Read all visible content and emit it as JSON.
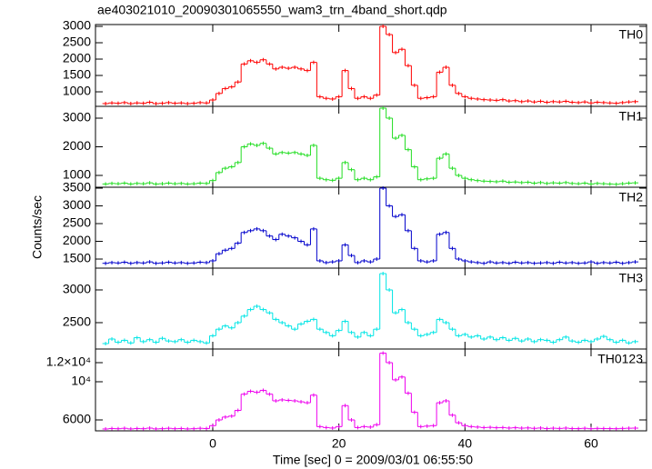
{
  "figure": {
    "title": "ae403021010_20090301065550_wam3_trn_4band_short.qdp",
    "xlabel": "Time [sec] 0 = 2009/03/01 06:55:50",
    "ylabel": "Counts/sec",
    "xlim": [
      -18.6,
      68.8
    ],
    "xticks": [
      0,
      20,
      40,
      60
    ],
    "x": [
      -17,
      -16,
      -15,
      -14,
      -13,
      -12,
      -11,
      -10,
      -9,
      -8,
      -7,
      -6,
      -5,
      -4,
      -3,
      -2,
      -1,
      0,
      1,
      2,
      3,
      4,
      5,
      6,
      7,
      8,
      9,
      10,
      11,
      12,
      13,
      14,
      15,
      16,
      17,
      18,
      19,
      20,
      21,
      22,
      23,
      24,
      25,
      26,
      27,
      28,
      29,
      30,
      31,
      32,
      33,
      34,
      35,
      36,
      37,
      38,
      39,
      40,
      41,
      42,
      43,
      44,
      45,
      46,
      47,
      48,
      49,
      50,
      51,
      52,
      53,
      54,
      55,
      56,
      57,
      58,
      59,
      60,
      61,
      62,
      63,
      64,
      65,
      66,
      67
    ]
  },
  "chart_data": [
    {
      "type": "step",
      "ylim": [
        556,
        3056
      ],
      "yticks": [
        1000,
        1500,
        2000,
        2500,
        3000
      ],
      "series": [
        {
          "name": "TH0",
          "color": "#ff0000",
          "values": [
            640,
            660,
            650,
            670,
            640,
            660,
            650,
            680,
            640,
            650,
            670,
            650,
            660,
            640,
            650,
            670,
            660,
            750,
            950,
            1100,
            1150,
            1300,
            1850,
            1950,
            1900,
            1980,
            1850,
            1700,
            1750,
            1720,
            1750,
            1700,
            1650,
            1900,
            850,
            800,
            780,
            850,
            1650,
            1100,
            800,
            850,
            800,
            900,
            3000,
            2750,
            2200,
            2300,
            1800,
            1200,
            800,
            820,
            850,
            1600,
            1750,
            1200,
            950,
            850,
            800,
            780,
            760,
            750,
            740,
            760,
            720,
            730,
            700,
            720,
            690,
            710,
            680,
            700,
            690,
            710,
            680,
            670,
            690,
            660,
            680,
            670,
            660,
            650,
            670,
            690,
            700
          ]
        }
      ]
    },
    {
      "type": "step",
      "ylim": [
        587,
        3413
      ],
      "yticks": [
        1000,
        2000,
        3000
      ],
      "series": [
        {
          "name": "TH1",
          "color": "#22dd22",
          "values": [
            700,
            720,
            710,
            730,
            700,
            720,
            710,
            740,
            700,
            710,
            730,
            710,
            720,
            700,
            710,
            730,
            720,
            820,
            1100,
            1250,
            1300,
            1450,
            2000,
            2100,
            2050,
            2120,
            1950,
            1750,
            1800,
            1780,
            1800,
            1750,
            1700,
            2050,
            900,
            850,
            830,
            900,
            1450,
            1200,
            850,
            900,
            850,
            950,
            3350,
            3000,
            2300,
            2400,
            1900,
            1300,
            850,
            880,
            900,
            1600,
            1750,
            1250,
            1000,
            900,
            850,
            820,
            800,
            790,
            780,
            800,
            760,
            770,
            750,
            760,
            730,
            750,
            720,
            740,
            730,
            750,
            720,
            710,
            730,
            700,
            720,
            710,
            700,
            690,
            710,
            730,
            740
          ]
        }
      ]
    },
    {
      "type": "step",
      "ylim": [
        1244,
        3526
      ],
      "yticks": [
        1500,
        2000,
        2500,
        3000,
        3500
      ],
      "series": [
        {
          "name": "TH2",
          "color": "#0000cc",
          "values": [
            1380,
            1400,
            1390,
            1410,
            1380,
            1400,
            1390,
            1420,
            1380,
            1390,
            1410,
            1390,
            1400,
            1380,
            1390,
            1410,
            1400,
            1450,
            1650,
            1750,
            1800,
            1950,
            2250,
            2300,
            2350,
            2300,
            2150,
            2050,
            2200,
            2150,
            2100,
            2000,
            1900,
            2350,
            1450,
            1400,
            1420,
            1450,
            1900,
            1600,
            1400,
            1450,
            1420,
            1500,
            3500,
            3000,
            2700,
            2750,
            2300,
            1800,
            1450,
            1420,
            1450,
            2200,
            2250,
            1800,
            1500,
            1450,
            1420,
            1400,
            1380,
            1420,
            1390,
            1400,
            1380,
            1410,
            1390,
            1400,
            1380,
            1390,
            1400,
            1380,
            1410,
            1390,
            1400,
            1380,
            1390,
            1420,
            1380,
            1400,
            1390,
            1410,
            1380,
            1400,
            1420
          ]
        }
      ]
    },
    {
      "type": "step",
      "ylim": [
        2097,
        3333
      ],
      "yticks": [
        2500,
        3000
      ],
      "series": [
        {
          "name": "TH3",
          "color": "#00e5e5",
          "values": [
            2180,
            2250,
            2200,
            2230,
            2190,
            2270,
            2210,
            2240,
            2200,
            2260,
            2220,
            2210,
            2240,
            2200,
            2230,
            2210,
            2190,
            2300,
            2400,
            2450,
            2420,
            2500,
            2600,
            2700,
            2750,
            2700,
            2650,
            2550,
            2500,
            2450,
            2400,
            2480,
            2520,
            2550,
            2400,
            2350,
            2300,
            2380,
            2520,
            2350,
            2280,
            2350,
            2300,
            2400,
            3250,
            3000,
            2650,
            2700,
            2500,
            2400,
            2300,
            2320,
            2350,
            2550,
            2500,
            2400,
            2300,
            2320,
            2280,
            2300,
            2250,
            2280,
            2240,
            2270,
            2230,
            2260,
            2220,
            2250,
            2210,
            2240,
            2230,
            2200,
            2240,
            2280,
            2220,
            2200,
            2230,
            2210,
            2250,
            2290,
            2240,
            2200,
            2230,
            2190,
            2210
          ]
        }
      ]
    },
    {
      "type": "step",
      "ylim": [
        4857,
        13430
      ],
      "yticks": [
        {
          "value": 12000,
          "label": "1.2×10⁴"
        },
        {
          "value": 10000,
          "label": "10⁴"
        },
        6000
      ],
      "series": [
        {
          "name": "TH0123",
          "color": "#ee00ee",
          "values": [
            5050,
            5100,
            5080,
            5120,
            5060,
            5100,
            5080,
            5140,
            5060,
            5080,
            5120,
            5080,
            5100,
            5060,
            5080,
            5120,
            5100,
            5400,
            6000,
            6300,
            6400,
            7000,
            8700,
            9000,
            8900,
            9100,
            8700,
            8000,
            8100,
            8050,
            8000,
            7900,
            7800,
            8600,
            5300,
            5200,
            5150,
            5300,
            7500,
            6000,
            5200,
            5300,
            5250,
            5500,
            13000,
            12000,
            10200,
            10500,
            8800,
            6800,
            5300,
            5350,
            5400,
            7800,
            8000,
            6500,
            5700,
            5400,
            5300,
            5250,
            5200,
            5220,
            5180,
            5200,
            5150,
            5180,
            5140,
            5160,
            5120,
            5150,
            5100,
            5130,
            5110,
            5140,
            5100,
            5090,
            5120,
            5080,
            5110,
            5100,
            5090,
            5080,
            5110,
            5130,
            5140
          ]
        }
      ]
    }
  ]
}
